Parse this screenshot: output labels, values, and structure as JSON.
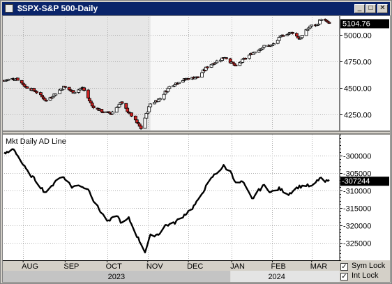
{
  "window": {
    "title": "$SPX-S&P 500-Daily",
    "buttons": {
      "minimize": "_",
      "maximize": "□",
      "close": "✕"
    }
  },
  "colors": {
    "price_panel_bg": "#e6e6e6",
    "price_panel_bg_recent": "#f7f7f7",
    "down_bar": "#cc2222",
    "up_bar": "#ffffff",
    "ad_line": "#000000",
    "badge_bg": "#000000"
  },
  "chart_data": [
    {
      "type": "ohlc",
      "name": "$SPX-S&P 500-Daily",
      "ylim": [
        4100,
        5180
      ],
      "yticks": [
        5000,
        4750,
        4500,
        4250
      ],
      "ytick_labels": [
        "5000.00",
        "4750.00",
        "4500.00",
        "4250.00"
      ],
      "last_value_label": "5104.76",
      "anchors": [
        [
          "2023-07-18",
          4570
        ],
        [
          "2023-07-27",
          4590
        ],
        [
          "2023-08-03",
          4510
        ],
        [
          "2023-08-10",
          4470
        ],
        [
          "2023-08-18",
          4380
        ],
        [
          "2023-08-23",
          4430
        ],
        [
          "2023-08-31",
          4510
        ],
        [
          "2023-09-07",
          4460
        ],
        [
          "2023-09-14",
          4500
        ],
        [
          "2023-09-21",
          4330
        ],
        [
          "2023-09-28",
          4280
        ],
        [
          "2023-10-05",
          4260
        ],
        [
          "2023-10-12",
          4360
        ],
        [
          "2023-10-20",
          4240
        ],
        [
          "2023-10-27",
          4120
        ],
        [
          "2023-11-03",
          4350
        ],
        [
          "2023-11-10",
          4400
        ],
        [
          "2023-11-17",
          4510
        ],
        [
          "2023-11-24",
          4560
        ],
        [
          "2023-12-01",
          4590
        ],
        [
          "2023-12-08",
          4600
        ],
        [
          "2023-12-15",
          4700
        ],
        [
          "2023-12-22",
          4750
        ],
        [
          "2023-12-28",
          4790
        ],
        [
          "2024-01-05",
          4700
        ],
        [
          "2024-01-12",
          4780
        ],
        [
          "2024-01-19",
          4840
        ],
        [
          "2024-01-26",
          4890
        ],
        [
          "2024-02-01",
          4900
        ],
        [
          "2024-02-09",
          5000
        ],
        [
          "2024-02-16",
          5020
        ],
        [
          "2024-02-21",
          4960
        ],
        [
          "2024-02-29",
          5080
        ],
        [
          "2024-03-05",
          5090
        ],
        [
          "2024-03-08",
          5150
        ],
        [
          "2024-03-14",
          5104.76
        ]
      ]
    },
    {
      "type": "line",
      "name": "Mkt Daily AD Line",
      "label": "Mkt Daily AD Line",
      "ylim": [
        -330000,
        -294000
      ],
      "yticks": [
        -300000,
        -305000,
        -310000,
        -315000,
        -320000,
        -325000
      ],
      "ytick_labels": [
        "-300000",
        "-305000",
        "-310000",
        "-315000",
        "-320000",
        "-325000"
      ],
      "last_value_label": "-307244",
      "anchors": [
        [
          "2023-07-18",
          -299500
        ],
        [
          "2023-07-21",
          -299000
        ],
        [
          "2023-07-25",
          -298000
        ],
        [
          "2023-07-31",
          -302000
        ],
        [
          "2023-08-04",
          -304500
        ],
        [
          "2023-08-10",
          -307000
        ],
        [
          "2023-08-17",
          -310500
        ],
        [
          "2023-08-21",
          -309500
        ],
        [
          "2023-08-25",
          -307000
        ],
        [
          "2023-08-31",
          -306000
        ],
        [
          "2023-09-06",
          -309000
        ],
        [
          "2023-09-12",
          -308500
        ],
        [
          "2023-09-19",
          -310000
        ],
        [
          "2023-09-22",
          -313000
        ],
        [
          "2023-09-28",
          -316500
        ],
        [
          "2023-10-03",
          -319000
        ],
        [
          "2023-10-09",
          -317000
        ],
        [
          "2023-10-13",
          -319500
        ],
        [
          "2023-10-18",
          -318000
        ],
        [
          "2023-10-24",
          -323000
        ],
        [
          "2023-10-30",
          -327500
        ],
        [
          "2023-11-03",
          -323000
        ],
        [
          "2023-11-09",
          -322500
        ],
        [
          "2023-11-14",
          -320000
        ],
        [
          "2023-11-20",
          -319500
        ],
        [
          "2023-11-28",
          -317000
        ],
        [
          "2023-12-04",
          -315000
        ],
        [
          "2023-12-08",
          -313000
        ],
        [
          "2023-12-13",
          -309500
        ],
        [
          "2023-12-19",
          -306000
        ],
        [
          "2023-12-27",
          -303000
        ],
        [
          "2024-01-02",
          -305000
        ],
        [
          "2024-01-05",
          -308000
        ],
        [
          "2024-01-10",
          -307500
        ],
        [
          "2024-01-17",
          -312500
        ],
        [
          "2024-01-22",
          -310000
        ],
        [
          "2024-01-26",
          -308500
        ],
        [
          "2024-01-31",
          -310500
        ],
        [
          "2024-02-06",
          -309500
        ],
        [
          "2024-02-13",
          -311000
        ],
        [
          "2024-02-20",
          -309000
        ],
        [
          "2024-02-26",
          -308500
        ],
        [
          "2024-03-01",
          -309000
        ],
        [
          "2024-03-07",
          -306500
        ],
        [
          "2024-03-11",
          -307500
        ],
        [
          "2024-03-14",
          -307244
        ]
      ]
    }
  ],
  "x_axis": {
    "months": [
      {
        "label": "AUG",
        "date": "2023-08-01"
      },
      {
        "label": "SEP",
        "date": "2023-09-01"
      },
      {
        "label": "OCT",
        "date": "2023-10-02"
      },
      {
        "label": "NOV",
        "date": "2023-11-01"
      },
      {
        "label": "DEC",
        "date": "2023-12-01"
      },
      {
        "label": "JAN",
        "date": "2024-01-02"
      },
      {
        "label": "FEB",
        "date": "2024-02-01"
      },
      {
        "label": "MAR",
        "date": "2024-03-01"
      }
    ],
    "years": [
      "2023",
      "2024"
    ],
    "range": [
      "2023-07-18",
      "2024-03-14"
    ]
  },
  "controls": {
    "sym_lock": {
      "label": "Sym Lock",
      "checked": true
    },
    "int_lock": {
      "label": "Int Lock",
      "checked": true
    }
  }
}
